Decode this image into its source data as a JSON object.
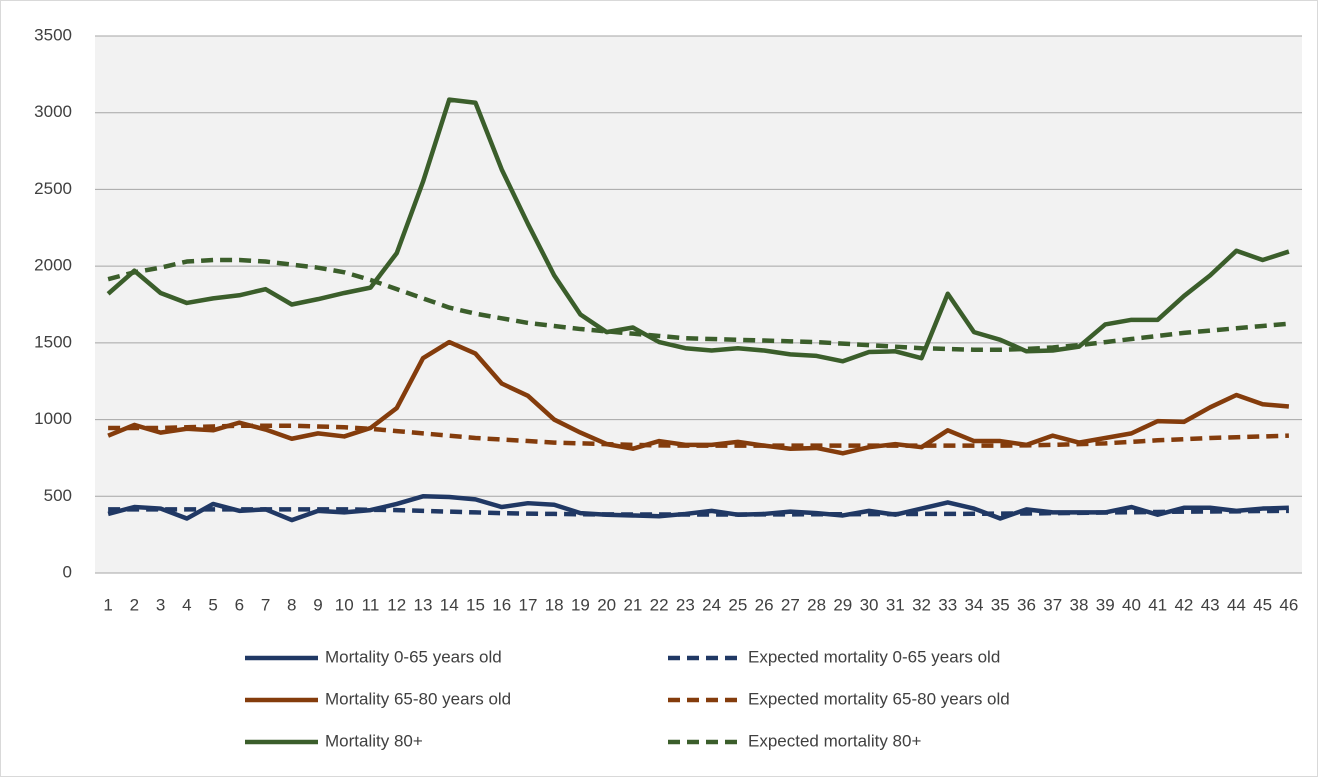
{
  "chart_data": {
    "type": "line",
    "categories": [
      1,
      2,
      3,
      4,
      5,
      6,
      7,
      8,
      9,
      10,
      11,
      12,
      13,
      14,
      15,
      16,
      17,
      18,
      19,
      20,
      21,
      22,
      23,
      24,
      25,
      26,
      27,
      28,
      29,
      30,
      31,
      32,
      33,
      34,
      35,
      36,
      37,
      38,
      39,
      40,
      41,
      42,
      43,
      44,
      45,
      46
    ],
    "ylim": [
      0,
      3500
    ],
    "yticks": [
      0,
      500,
      1000,
      1500,
      2000,
      2500,
      3000,
      3500
    ],
    "grid": true,
    "legend": "bottom",
    "series": [
      {
        "name": "Mortality 0-65 years old",
        "color": "#203864",
        "dashed": false,
        "values": [
          385,
          430,
          420,
          355,
          450,
          405,
          415,
          345,
          405,
          395,
          410,
          450,
          500,
          495,
          480,
          430,
          455,
          445,
          390,
          380,
          375,
          370,
          385,
          405,
          380,
          385,
          400,
          390,
          375,
          405,
          380,
          420,
          460,
          420,
          355,
          415,
          395,
          395,
          395,
          430,
          380,
          425,
          425,
          405,
          420,
          425
        ]
      },
      {
        "name": "Expected mortality 0-65 years old",
        "color": "#203864",
        "dashed": true,
        "values": [
          415,
          415,
          415,
          415,
          415,
          415,
          415,
          415,
          415,
          415,
          412,
          410,
          405,
          400,
          395,
          390,
          387,
          385,
          383,
          382,
          381,
          381,
          381,
          381,
          381,
          382,
          382,
          383,
          383,
          384,
          384,
          385,
          385,
          386,
          387,
          388,
          390,
          392,
          394,
          396,
          398,
          400,
          401,
          402,
          404,
          405
        ]
      },
      {
        "name": "Mortality 65-80 years old",
        "color": "#843c0c",
        "dashed": false,
        "values": [
          895,
          965,
          915,
          940,
          930,
          980,
          935,
          875,
          910,
          890,
          945,
          1075,
          1400,
          1505,
          1430,
          1235,
          1155,
          1000,
          915,
          840,
          810,
          860,
          835,
          835,
          855,
          830,
          810,
          815,
          780,
          820,
          840,
          820,
          930,
          860,
          860,
          835,
          895,
          850,
          880,
          910,
          990,
          985,
          1080,
          1160,
          1100,
          1085
        ]
      },
      {
        "name": "Expected mortality 65-80 years old",
        "color": "#843c0c",
        "dashed": true,
        "values": [
          945,
          945,
          945,
          950,
          955,
          960,
          960,
          960,
          955,
          950,
          940,
          925,
          910,
          895,
          880,
          870,
          860,
          850,
          845,
          840,
          835,
          832,
          830,
          830,
          830,
          830,
          830,
          830,
          830,
          830,
          830,
          830,
          830,
          830,
          830,
          832,
          835,
          840,
          845,
          855,
          865,
          872,
          880,
          885,
          890,
          895
        ]
      },
      {
        "name": "Mortality 80+",
        "color": "#3b5e2b",
        "dashed": false,
        "values": [
          1820,
          1970,
          1825,
          1760,
          1790,
          1810,
          1850,
          1750,
          1785,
          1825,
          1860,
          2085,
          2550,
          3085,
          3065,
          2630,
          2275,
          1940,
          1685,
          1570,
          1600,
          1505,
          1465,
          1450,
          1465,
          1450,
          1425,
          1415,
          1380,
          1440,
          1445,
          1400,
          1820,
          1570,
          1520,
          1445,
          1450,
          1475,
          1620,
          1650,
          1650,
          1805,
          1940,
          2100,
          2040,
          2095
        ]
      },
      {
        "name": "Expected mortality 80+",
        "color": "#3b5e2b",
        "dashed": true,
        "values": [
          1915,
          1960,
          1990,
          2030,
          2040,
          2040,
          2030,
          2010,
          1990,
          1960,
          1910,
          1850,
          1790,
          1730,
          1690,
          1660,
          1630,
          1610,
          1590,
          1575,
          1560,
          1545,
          1530,
          1525,
          1520,
          1515,
          1510,
          1505,
          1495,
          1485,
          1475,
          1465,
          1460,
          1455,
          1455,
          1460,
          1470,
          1485,
          1505,
          1525,
          1545,
          1565,
          1580,
          1595,
          1610,
          1625
        ]
      }
    ]
  }
}
